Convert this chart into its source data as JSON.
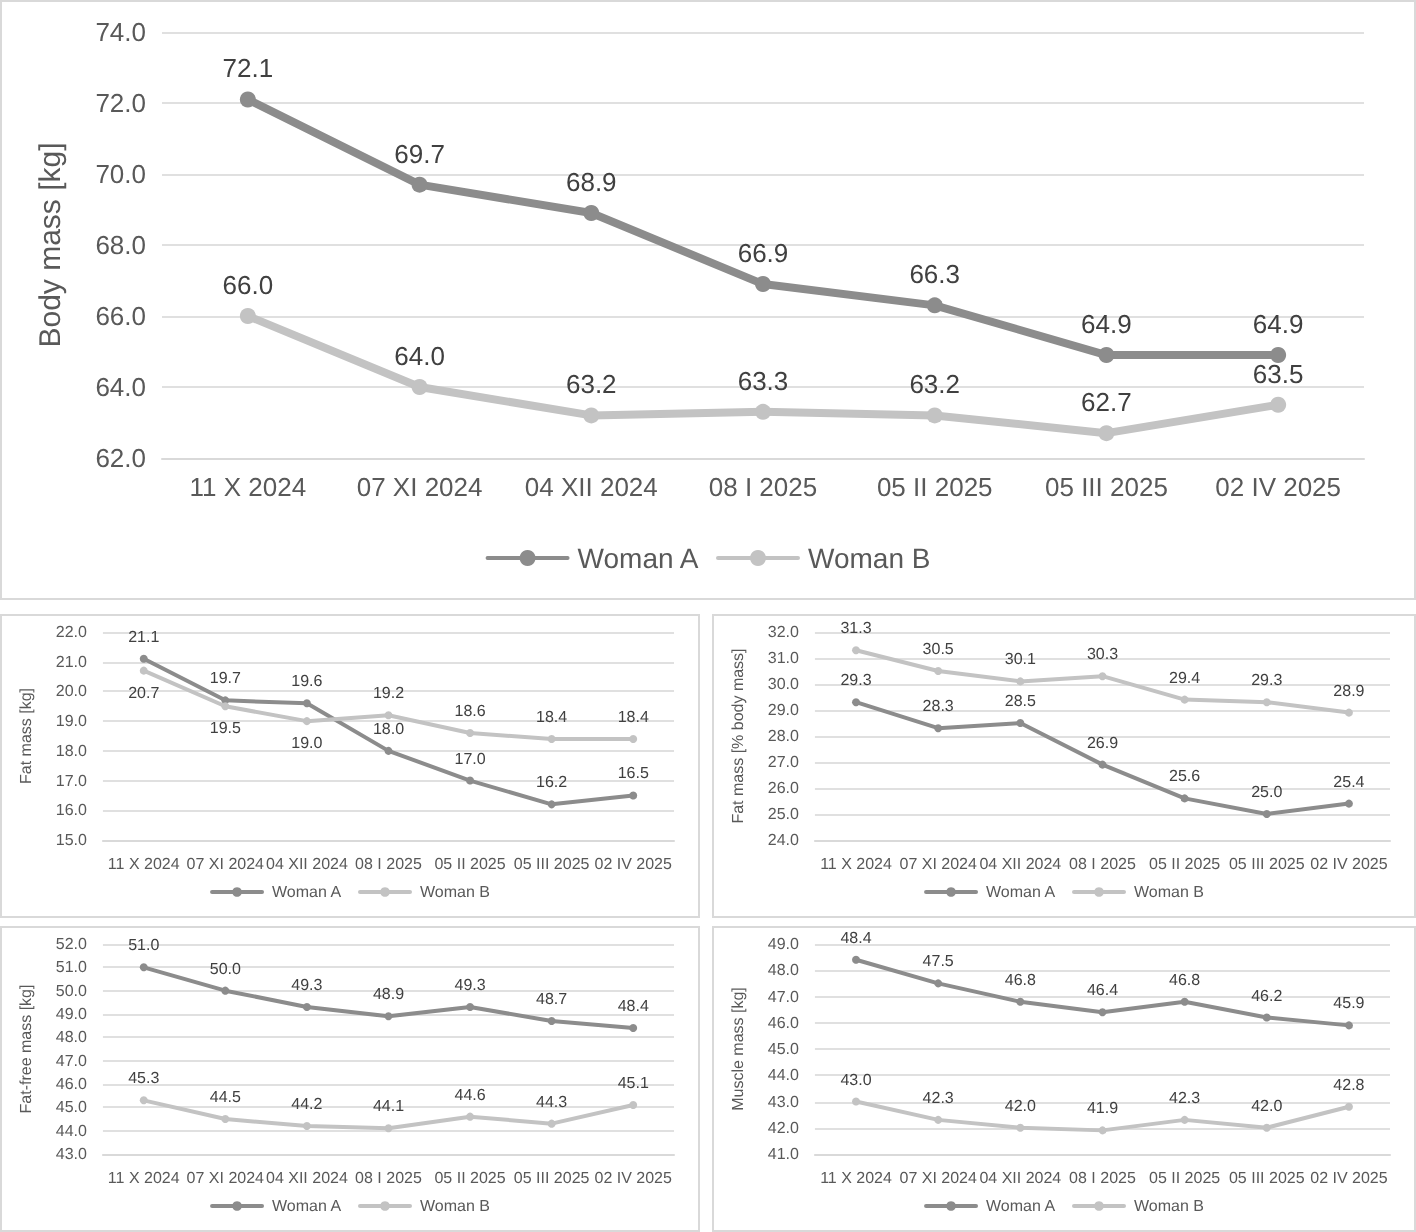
{
  "chart_data": [
    {
      "type": "line",
      "ylabel": "Body mass [kg]",
      "categories": [
        "11 X 2024",
        "07 XI 2024",
        "04 XII 2024",
        "08 I 2025",
        "05 II 2025",
        "05 III 2025",
        "02 IV 2025"
      ],
      "series": [
        {
          "name": "Woman A",
          "color": "#8c8c8c",
          "values": [
            72.1,
            69.7,
            68.9,
            66.9,
            66.3,
            64.9,
            64.9
          ],
          "value_labels": [
            "72.1",
            "69.7",
            "68.9",
            "66.9",
            "66.3",
            "64.9",
            "64.9"
          ]
        },
        {
          "name": "Woman B",
          "color": "#c3c3c3",
          "values": [
            66.0,
            64.0,
            63.2,
            63.3,
            63.2,
            62.7,
            63.5
          ],
          "value_labels": [
            "66.0",
            "64.0",
            "63.2",
            "63.3",
            "63.2",
            "62.7",
            "63.5"
          ]
        }
      ],
      "ylim": [
        62,
        74
      ],
      "yticks": [
        {
          "value": 62,
          "label": "62.0"
        },
        {
          "value": 64,
          "label": "64.0"
        },
        {
          "value": 66,
          "label": "66.0"
        },
        {
          "value": 68,
          "label": "68.0"
        },
        {
          "value": 70,
          "label": "70.0"
        },
        {
          "value": 72,
          "label": "72.0"
        },
        {
          "value": 74,
          "label": "74.0"
        }
      ],
      "grid": "y",
      "legend": "bottom",
      "marker": "circle"
    },
    {
      "type": "line",
      "ylabel": "Fat mass [kg]",
      "categories": [
        "11 X 2024",
        "07 XI 2024",
        "04 XII 2024",
        "08 I 2025",
        "05 II 2025",
        "05 III 2025",
        "02 IV 2025"
      ],
      "series": [
        {
          "name": "Woman A",
          "color": "#8c8c8c",
          "values": [
            21.1,
            19.7,
            19.6,
            18.0,
            17.0,
            16.2,
            16.5
          ],
          "value_labels": [
            "21.1",
            "19.7",
            "19.6",
            "18.0",
            "17.0",
            "16.2",
            "16.5"
          ]
        },
        {
          "name": "Woman B",
          "color": "#c3c3c3",
          "values": [
            20.7,
            19.5,
            19.0,
            19.2,
            18.6,
            18.4,
            18.4
          ],
          "value_labels": [
            "20.7",
            "19.5",
            "19.0",
            "19.2",
            "18.6",
            "18.4",
            "18.4"
          ]
        }
      ],
      "ylim": [
        15,
        22
      ],
      "yticks": [
        {
          "value": 15,
          "label": "15.0"
        },
        {
          "value": 16,
          "label": "16.0"
        },
        {
          "value": 17,
          "label": "17.0"
        },
        {
          "value": 18,
          "label": "18.0"
        },
        {
          "value": 19,
          "label": "19.0"
        },
        {
          "value": 20,
          "label": "20.0"
        },
        {
          "value": 21,
          "label": "21.0"
        },
        {
          "value": 22,
          "label": "22.0"
        }
      ],
      "grid": "y",
      "legend": "bottom",
      "marker": "circle"
    },
    {
      "type": "line",
      "ylabel": "Fat mass [% body mass]",
      "categories": [
        "11 X 2024",
        "07 XI 2024",
        "04 XII 2024",
        "08 I 2025",
        "05 II 2025",
        "05 III 2025",
        "02 IV 2025"
      ],
      "series": [
        {
          "name": "Woman A",
          "color": "#8c8c8c",
          "values": [
            29.3,
            28.3,
            28.5,
            26.9,
            25.6,
            25.0,
            25.4
          ],
          "value_labels": [
            "29.3",
            "28.3",
            "28.5",
            "26.9",
            "25.6",
            "25.0",
            "25.4"
          ]
        },
        {
          "name": "Woman B",
          "color": "#c3c3c3",
          "values": [
            31.3,
            30.5,
            30.1,
            30.3,
            29.4,
            29.3,
            28.9
          ],
          "value_labels": [
            "31.3",
            "30.5",
            "30.1",
            "30.3",
            "29.4",
            "29.3",
            "28.9"
          ]
        }
      ],
      "ylim": [
        24,
        32
      ],
      "yticks": [
        {
          "value": 24,
          "label": "24.0"
        },
        {
          "value": 25,
          "label": "25.0"
        },
        {
          "value": 26,
          "label": "26.0"
        },
        {
          "value": 27,
          "label": "27.0"
        },
        {
          "value": 28,
          "label": "28.0"
        },
        {
          "value": 29,
          "label": "29.0"
        },
        {
          "value": 30,
          "label": "30.0"
        },
        {
          "value": 31,
          "label": "31.0"
        },
        {
          "value": 32,
          "label": "32.0"
        }
      ],
      "grid": "y",
      "legend": "bottom",
      "marker": "circle"
    },
    {
      "type": "line",
      "ylabel": "Fat-free mass [kg]",
      "categories": [
        "11 X 2024",
        "07 XI 2024",
        "04 XII 2024",
        "08 I 2025",
        "05 II 2025",
        "05 III 2025",
        "02 IV 2025"
      ],
      "series": [
        {
          "name": "Woman A",
          "color": "#8c8c8c",
          "values": [
            51.0,
            50.0,
            49.3,
            48.9,
            49.3,
            48.7,
            48.4
          ],
          "value_labels": [
            "51.0",
            "50.0",
            "49.3",
            "48.9",
            "49.3",
            "48.7",
            "48.4"
          ]
        },
        {
          "name": "Woman B",
          "color": "#c3c3c3",
          "values": [
            45.3,
            44.5,
            44.2,
            44.1,
            44.6,
            44.3,
            45.1
          ],
          "value_labels": [
            "45.3",
            "44.5",
            "44.2",
            "44.1",
            "44.6",
            "44.3",
            "45.1"
          ]
        }
      ],
      "ylim": [
        43,
        52
      ],
      "yticks": [
        {
          "value": 43,
          "label": "43.0"
        },
        {
          "value": 44,
          "label": "44.0"
        },
        {
          "value": 45,
          "label": "45.0"
        },
        {
          "value": 46,
          "label": "46.0"
        },
        {
          "value": 47,
          "label": "47.0"
        },
        {
          "value": 48,
          "label": "48.0"
        },
        {
          "value": 49,
          "label": "49.0"
        },
        {
          "value": 50,
          "label": "50.0"
        },
        {
          "value": 51,
          "label": "51.0"
        },
        {
          "value": 52,
          "label": "52.0"
        }
      ],
      "grid": "y",
      "legend": "bottom",
      "marker": "circle"
    },
    {
      "type": "line",
      "ylabel": "Muscle mass [kg]",
      "categories": [
        "11 X 2024",
        "07 XI 2024",
        "04 XII 2024",
        "08 I 2025",
        "05 II 2025",
        "05 III 2025",
        "02 IV 2025"
      ],
      "series": [
        {
          "name": "Woman A",
          "color": "#8c8c8c",
          "values": [
            48.4,
            47.5,
            46.8,
            46.4,
            46.8,
            46.2,
            45.9
          ],
          "value_labels": [
            "48.4",
            "47.5",
            "46.8",
            "46.4",
            "46.8",
            "46.2",
            "45.9"
          ]
        },
        {
          "name": "Woman B",
          "color": "#c3c3c3",
          "values": [
            43.0,
            42.3,
            42.0,
            41.9,
            42.3,
            42.0,
            42.8
          ],
          "value_labels": [
            "43.0",
            "42.3",
            "42.0",
            "41.9",
            "42.3",
            "42.0",
            "42.8"
          ]
        }
      ],
      "ylim": [
        41,
        49
      ],
      "yticks": [
        {
          "value": 41,
          "label": "41.0"
        },
        {
          "value": 42,
          "label": "42.0"
        },
        {
          "value": 43,
          "label": "43.0"
        },
        {
          "value": 44,
          "label": "44.0"
        },
        {
          "value": 45,
          "label": "45.0"
        },
        {
          "value": 46,
          "label": "46.0"
        },
        {
          "value": 47,
          "label": "47.0"
        },
        {
          "value": 48,
          "label": "48.0"
        },
        {
          "value": 49,
          "label": "49.0"
        }
      ],
      "grid": "y",
      "legend": "bottom",
      "marker": "circle"
    }
  ]
}
